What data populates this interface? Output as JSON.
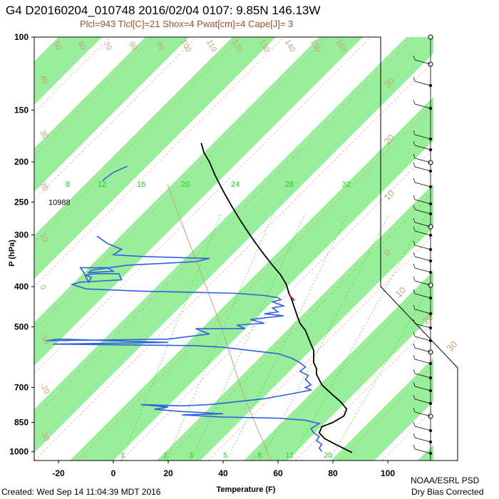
{
  "header": {
    "title": "G4 D20160204_010748 2016/02/04 0107:  9.85N 146.13W",
    "subtitle": "Plcl=943 Tlcl[C]=21 Shox=4 Pwat[cm]=4 Cape[J]= 3"
  },
  "footer": {
    "created": "Created: Wed Sep 14 11:04:39 MDT 2016",
    "org": "NOAA/ESRL PSD",
    "note": "Dry Bias Corrected"
  },
  "colors": {
    "temperature": "#000000",
    "dewpoint": "#3060e0",
    "band_fill": "#99ee99",
    "isotherm": "#c8a080",
    "mixing_ratio": "#22cc22",
    "highlight": "#e02020"
  },
  "chart_data": {
    "type": "line",
    "xlabel": "Temperature (F)",
    "ylabel": "P (hPa)",
    "x_ticks": [
      -20,
      0,
      20,
      40,
      60,
      80,
      100
    ],
    "y_ticks": [
      100,
      150,
      200,
      250,
      300,
      400,
      500,
      700,
      850,
      1000
    ],
    "xlim": [
      -29,
      110
    ],
    "ylim": [
      1050,
      100
    ],
    "y_scale": "log",
    "height_label": {
      "text": "10988",
      "pressure": 250
    },
    "mixing_ratio_labels": [
      "8",
      "12",
      "16",
      "20",
      "24",
      "28",
      "32"
    ],
    "mixing_ratio_bottom_labels": [
      "1",
      "2",
      "3",
      "5",
      "8",
      "12",
      "20"
    ],
    "isotherm_labels": [
      "50",
      "60",
      "70",
      "80",
      "90",
      "100",
      "110",
      "120",
      "130",
      "140",
      "150",
      "160"
    ],
    "isotherm_left_labels": [
      "40",
      "30",
      "20",
      "10",
      "0",
      "-10",
      "-20",
      "-30"
    ],
    "right_labels": [
      "30",
      "20",
      "10",
      "0",
      "10",
      "20",
      "30"
    ],
    "series": [
      {
        "key": "temperature",
        "points": [
          [
            32,
            180
          ],
          [
            33,
            190
          ],
          [
            35,
            200
          ],
          [
            37,
            215
          ],
          [
            40,
            235
          ],
          [
            43,
            255
          ],
          [
            46,
            275
          ],
          [
            49,
            295
          ],
          [
            52,
            315
          ],
          [
            55,
            335
          ],
          [
            58,
            355
          ],
          [
            61,
            375
          ],
          [
            63,
            395
          ],
          [
            64,
            415
          ],
          [
            65,
            430
          ],
          [
            66,
            450
          ],
          [
            67,
            470
          ],
          [
            68,
            490
          ],
          [
            70,
            510
          ],
          [
            71,
            530
          ],
          [
            72,
            550
          ],
          [
            73,
            570
          ],
          [
            73,
            590
          ],
          [
            73,
            610
          ],
          [
            74,
            630
          ],
          [
            74,
            650
          ],
          [
            75,
            670
          ],
          [
            76,
            690
          ],
          [
            78,
            710
          ],
          [
            80,
            730
          ],
          [
            83,
            760
          ],
          [
            85,
            790
          ],
          [
            84,
            820
          ],
          [
            80,
            850
          ],
          [
            76,
            870
          ],
          [
            75,
            900
          ],
          [
            77,
            930
          ],
          [
            81,
            960
          ],
          [
            85,
            990
          ],
          [
            87,
            1005
          ]
        ]
      },
      {
        "key": "dewpoint",
        "points": [
          [
            -4,
            222
          ],
          [
            0,
            212
          ],
          [
            5,
            205
          ]
        ]
      },
      {
        "key": "dewpoint",
        "points": [
          [
            -6,
            302
          ],
          [
            -2,
            315
          ],
          [
            3,
            325
          ],
          [
            0,
            335
          ],
          [
            10,
            338
          ],
          [
            35,
            342
          ],
          [
            30,
            348
          ],
          [
            5,
            355
          ],
          [
            -8,
            365
          ],
          [
            -9,
            370
          ],
          [
            0,
            367
          ],
          [
            -2,
            360
          ],
          [
            -12,
            360
          ],
          [
            -11,
            368
          ],
          [
            -9,
            390
          ],
          [
            -8,
            380
          ],
          [
            -10,
            375
          ],
          [
            -7,
            372
          ],
          [
            2,
            372
          ],
          [
            3,
            385
          ],
          [
            -12,
            390
          ],
          [
            -15,
            395
          ],
          [
            -10,
            405
          ],
          [
            10,
            410
          ],
          [
            45,
            415
          ],
          [
            55,
            420
          ],
          [
            60,
            425
          ],
          [
            61,
            430
          ],
          [
            58,
            435
          ],
          [
            62,
            445
          ],
          [
            58,
            450
          ],
          [
            60,
            460
          ],
          [
            55,
            465
          ],
          [
            62,
            470
          ],
          [
            50,
            480
          ],
          [
            55,
            490
          ],
          [
            45,
            495
          ],
          [
            48,
            505
          ],
          [
            30,
            505
          ],
          [
            35,
            520
          ],
          [
            20,
            535
          ],
          [
            -25,
            540
          ],
          [
            -20,
            535
          ],
          [
            20,
            545
          ],
          [
            -22,
            550
          ],
          [
            30,
            555
          ],
          [
            40,
            560
          ],
          [
            50,
            570
          ],
          [
            60,
            580
          ],
          [
            65,
            595
          ],
          [
            68,
            610
          ],
          [
            70,
            625
          ],
          [
            68,
            640
          ],
          [
            71,
            655
          ],
          [
            70,
            670
          ],
          [
            72,
            690
          ],
          [
            70,
            700
          ],
          [
            72,
            710
          ],
          [
            65,
            725
          ],
          [
            55,
            745
          ],
          [
            35,
            770
          ],
          [
            25,
            775
          ],
          [
            10,
            770
          ],
          [
            20,
            780
          ],
          [
            15,
            790
          ],
          [
            25,
            800
          ],
          [
            40,
            810
          ],
          [
            25,
            815
          ],
          [
            40,
            825
          ],
          [
            60,
            830
          ],
          [
            70,
            840
          ],
          [
            75,
            855
          ],
          [
            72,
            880
          ],
          [
            73,
            900
          ],
          [
            75,
            920
          ],
          [
            74,
            940
          ],
          [
            76,
            960
          ],
          [
            75,
            980
          ],
          [
            76,
            1000
          ]
        ]
      }
    ],
    "wind_barbs_on": true,
    "grid": "skew-T log-P"
  }
}
